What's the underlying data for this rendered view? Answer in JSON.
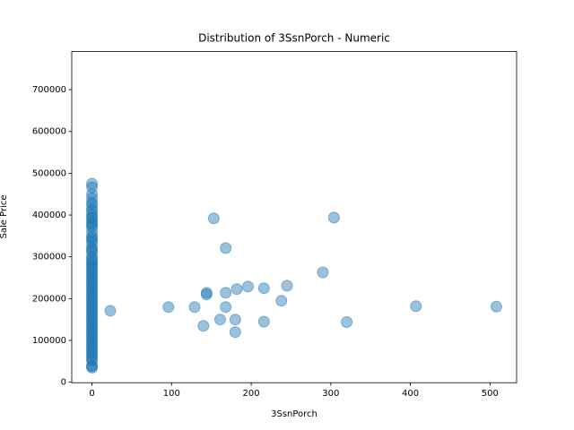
{
  "chart_data": {
    "type": "scatter",
    "title": "Distribution of 3SsnPorch - Numeric",
    "x_label": "3SsnPorch",
    "y_label": "Sale Price",
    "color": "#1f77b4",
    "x": [
      0,
      0,
      0,
      0,
      0,
      0,
      0,
      0,
      0,
      0,
      0,
      0,
      0,
      0,
      0,
      0,
      0,
      0,
      0,
      0,
      0,
      0,
      0,
      0,
      0,
      0,
      0,
      0,
      0,
      0,
      0,
      0,
      0,
      0,
      0,
      0,
      0,
      0,
      0,
      0,
      0,
      0,
      0,
      0,
      0,
      0,
      0,
      0,
      0,
      0,
      0,
      0,
      0,
      0,
      0,
      0,
      0,
      0,
      0,
      0,
      0,
      0,
      0,
      0,
      0,
      0,
      0,
      0,
      0,
      0,
      0,
      0,
      0,
      0,
      0,
      0,
      0,
      0,
      23,
      96,
      129,
      140,
      144,
      144,
      153,
      161,
      168,
      168,
      168,
      180,
      180,
      182,
      196,
      216,
      216,
      238,
      245,
      290,
      304,
      320,
      407,
      508
    ],
    "values": [
      34900,
      37900,
      40000,
      52000,
      55000,
      60000,
      65000,
      70000,
      75000,
      80000,
      85000,
      90000,
      95000,
      100000,
      105000,
      110000,
      115000,
      120000,
      125000,
      130000,
      135000,
      140000,
      145000,
      150000,
      155000,
      160000,
      165000,
      170000,
      175000,
      180000,
      185000,
      190000,
      195000,
      200000,
      205000,
      210000,
      215000,
      220000,
      225000,
      230000,
      235000,
      240000,
      245000,
      250000,
      255000,
      260000,
      265000,
      270000,
      275000,
      280000,
      285000,
      290000,
      295000,
      300000,
      310000,
      315000,
      319000,
      325000,
      335000,
      340000,
      345000,
      350000,
      360000,
      370878,
      375000,
      380000,
      385000,
      392500,
      395000,
      402000,
      410000,
      415298,
      424870,
      430000,
      440000,
      450000,
      466500,
      475000,
      171000,
      180000,
      180000,
      135000,
      214000,
      210000,
      392000,
      150000,
      321000,
      180000,
      214000,
      150000,
      120000,
      223000,
      229000,
      225000,
      145000,
      195000,
      231000,
      263000,
      394000,
      144000,
      182000,
      181000
    ],
    "xlim": [
      -25.4,
      533.4
    ],
    "ylim": [
      -1105,
      791005
    ],
    "xticks": [
      0,
      100,
      200,
      300,
      400,
      500
    ],
    "yticks": [
      0,
      100000,
      200000,
      300000,
      400000,
      500000,
      600000,
      700000
    ]
  }
}
